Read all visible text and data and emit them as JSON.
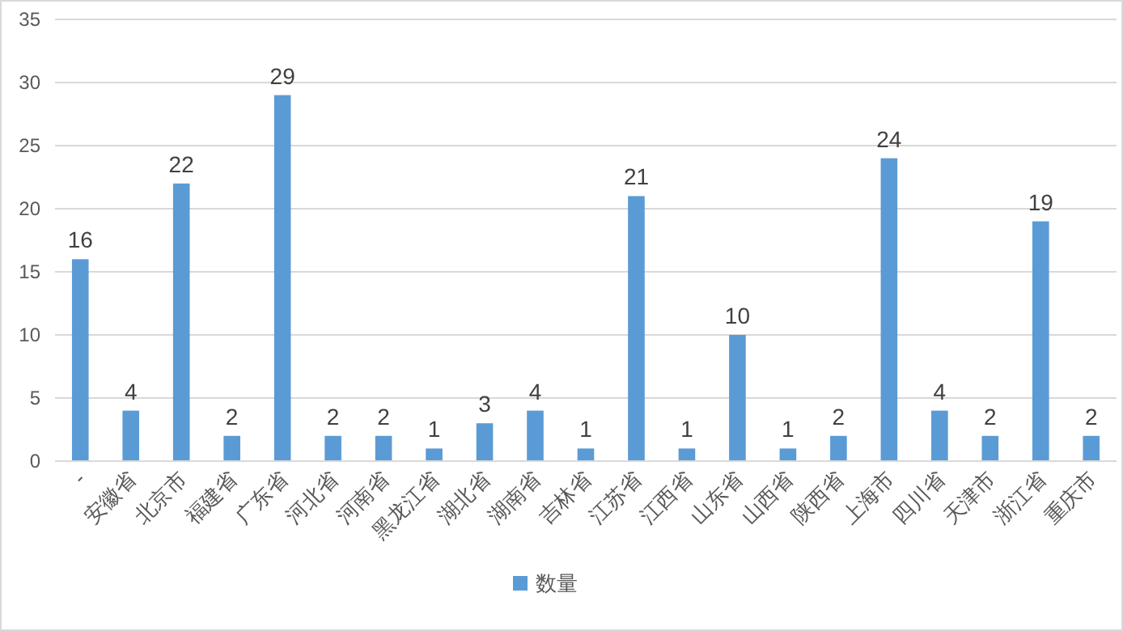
{
  "chart_data": {
    "type": "bar",
    "categories": [
      "-",
      "安徽省",
      "北京市",
      "福建省",
      "广东省",
      "河北省",
      "河南省",
      "黑龙江省",
      "湖北省",
      "湖南省",
      "吉林省",
      "江苏省",
      "江西省",
      "山东省",
      "山西省",
      "陕西省",
      "上海市",
      "四川省",
      "天津市",
      "浙江省",
      "重庆市"
    ],
    "series": [
      {
        "name": "数量",
        "color": "#5b9bd5",
        "values": [
          16,
          4,
          22,
          2,
          29,
          2,
          2,
          1,
          3,
          4,
          1,
          21,
          1,
          10,
          1,
          2,
          24,
          4,
          2,
          19,
          2
        ]
      }
    ],
    "ylim": [
      0,
      35
    ],
    "yticks": [
      0,
      5,
      10,
      15,
      20,
      25,
      30,
      35
    ],
    "grid": "y",
    "legend": "bottom",
    "data_labels": true
  }
}
